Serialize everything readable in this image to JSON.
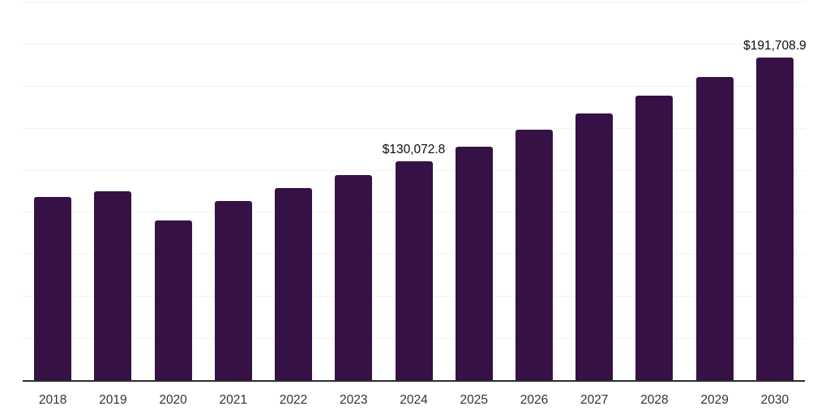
{
  "chart_data": {
    "type": "bar",
    "title": "",
    "xlabel": "",
    "ylabel": "",
    "categories": [
      "2018",
      "2019",
      "2020",
      "2021",
      "2022",
      "2023",
      "2024",
      "2025",
      "2026",
      "2027",
      "2028",
      "2029",
      "2030"
    ],
    "values": [
      109000,
      112500,
      94700,
      106700,
      114100,
      121800,
      130072.8,
      138800,
      148800,
      158400,
      169100,
      180400,
      191708.9
    ],
    "ylim": [
      0,
      225000
    ],
    "grid": {
      "horizontal": true,
      "interval": 25000,
      "color": "#f2f2f2"
    },
    "legend": "none",
    "bar_color": "#351146",
    "axis_line_color": "#2d2d2d",
    "tick_label_color": "#333333",
    "data_label_color": "#0b0b0b",
    "data_labels": [
      {
        "category": "2024",
        "text": "$130,072.8"
      },
      {
        "category": "2030",
        "text": "$191,708.9"
      }
    ]
  }
}
